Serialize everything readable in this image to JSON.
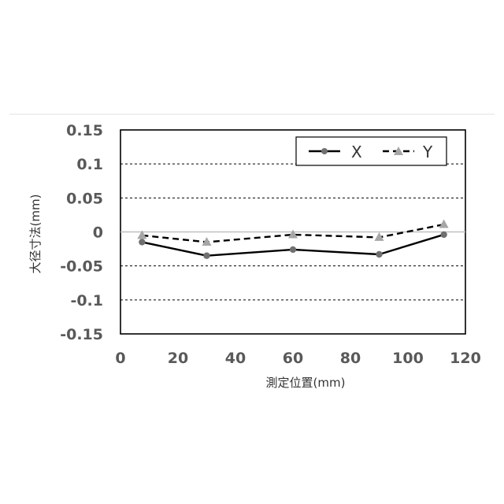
{
  "chart_data": {
    "type": "line",
    "title": "",
    "xlabel": "測定位置(mm)",
    "ylabel": "大径寸法(mm)",
    "xlim": [
      0,
      120
    ],
    "ylim": [
      -0.15,
      0.15
    ],
    "x_ticks": [
      0,
      20,
      40,
      60,
      80,
      100,
      120
    ],
    "y_ticks": [
      0.15,
      0.1,
      0.05,
      0,
      -0.05,
      -0.1,
      -0.15
    ],
    "x_tick_labels": [
      "0",
      "20",
      "40",
      "60",
      "80",
      "100",
      "120"
    ],
    "y_tick_labels": [
      "0.15",
      "0.1",
      "0.05",
      "0",
      "-0.05",
      "-0.1",
      "-0.15"
    ],
    "grid": "horizontal dashed",
    "legend_position": "top-right",
    "series": [
      {
        "name": "X",
        "x": [
          7.5,
          30,
          60,
          90,
          112.5
        ],
        "y": [
          -0.015,
          -0.035,
          -0.026,
          -0.033,
          -0.004
        ],
        "color": "#000000",
        "marker": "circle",
        "marker_color": "#707070",
        "line_style": "solid"
      },
      {
        "name": "Y",
        "x": [
          7.5,
          30,
          60,
          90,
          112.5
        ],
        "y": [
          -0.005,
          -0.015,
          -0.004,
          -0.008,
          0.011
        ],
        "color": "#000000",
        "marker": "triangle",
        "marker_color": "#a6a6a6",
        "line_style": "dashed"
      }
    ]
  }
}
